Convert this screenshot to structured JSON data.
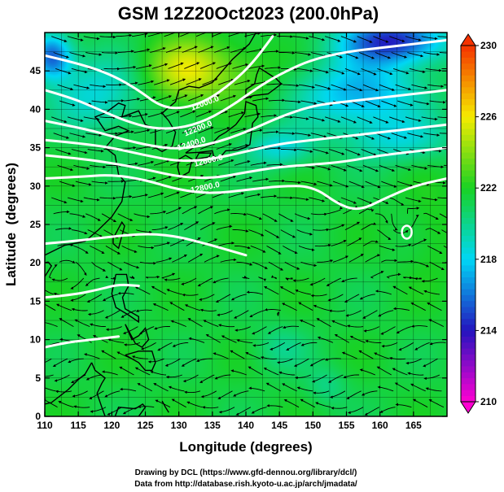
{
  "chart_data": {
    "type": "heatmap",
    "title": "GSM 12Z20Oct2023 (200.0hPa)",
    "xlabel": "Longitude (degrees)",
    "ylabel": "Latitude  (degrees)",
    "xlim": [
      110,
      170
    ],
    "ylim": [
      0,
      50
    ],
    "xticks": [
      110,
      115,
      120,
      125,
      130,
      135,
      140,
      145,
      150,
      155,
      160,
      165
    ],
    "yticks": [
      0,
      5,
      10,
      15,
      20,
      25,
      30,
      35,
      40,
      45
    ],
    "grid": true,
    "colorbar": {
      "placement": "right",
      "range": [
        210,
        230
      ],
      "ticks": [
        210,
        214,
        218,
        222,
        226,
        230
      ]
    },
    "contour_labels": [
      "12000.0",
      "12200.0",
      "12400.0",
      "12600.0",
      "12800.0"
    ],
    "contours": [
      {
        "points": [
          [
            110,
            47
          ],
          [
            115,
            46
          ],
          [
            120,
            44.5
          ],
          [
            124,
            42.5
          ],
          [
            127,
            40.5
          ],
          [
            130,
            40
          ],
          [
            134,
            41
          ],
          [
            138,
            43.5
          ],
          [
            141,
            46
          ],
          [
            144,
            49.5
          ]
        ]
      },
      {
        "points": [
          [
            110,
            42.5
          ],
          [
            114,
            41.5
          ],
          [
            118,
            40
          ],
          [
            122,
            38.5
          ],
          [
            126,
            37.5
          ],
          [
            130,
            37.5
          ],
          [
            134,
            38.5
          ],
          [
            138,
            40.5
          ],
          [
            142,
            43
          ],
          [
            146,
            45
          ],
          [
            150,
            46.5
          ],
          [
            155,
            47.5
          ],
          [
            160,
            48
          ],
          [
            165,
            48.5
          ],
          [
            170,
            49
          ]
        ]
      },
      {
        "points": [
          [
            110,
            38.5
          ],
          [
            114,
            37.8
          ],
          [
            118,
            37
          ],
          [
            122,
            36
          ],
          [
            126,
            35.2
          ],
          [
            130,
            34.8
          ],
          [
            135,
            35.5
          ],
          [
            140,
            37
          ],
          [
            145,
            39
          ],
          [
            150,
            40.5
          ],
          [
            155,
            41
          ],
          [
            160,
            41.5
          ],
          [
            165,
            42
          ],
          [
            170,
            42.5
          ]
        ]
      },
      {
        "points": [
          [
            110,
            36
          ],
          [
            115,
            35.6
          ],
          [
            120,
            35
          ],
          [
            125,
            34
          ],
          [
            130,
            33.2
          ],
          [
            135,
            33.5
          ],
          [
            140,
            34.5
          ],
          [
            145,
            35.5
          ],
          [
            150,
            36
          ],
          [
            155,
            36.5
          ],
          [
            160,
            37
          ],
          [
            165,
            37.5
          ],
          [
            170,
            38
          ]
        ]
      },
      {
        "points": [
          [
            110,
            34
          ],
          [
            115,
            33.6
          ],
          [
            120,
            33
          ],
          [
            125,
            32.2
          ],
          [
            130,
            31.2
          ],
          [
            135,
            31
          ],
          [
            140,
            31.8
          ],
          [
            145,
            32.5
          ],
          [
            150,
            32.8
          ],
          [
            155,
            33.2
          ],
          [
            160,
            34
          ],
          [
            165,
            34.5
          ],
          [
            170,
            35
          ]
        ]
      },
      {
        "points": [
          [
            110,
            31
          ],
          [
            115,
            31.2
          ],
          [
            120,
            31.5
          ],
          [
            125,
            30.8
          ],
          [
            130,
            29.5
          ],
          [
            135,
            29
          ],
          [
            140,
            29.5
          ],
          [
            145,
            30
          ],
          [
            150,
            30
          ],
          [
            154,
            27.5
          ],
          [
            157,
            26.8
          ],
          [
            161,
            28.5
          ],
          [
            165,
            30
          ],
          [
            170,
            31
          ]
        ]
      },
      {
        "points": [
          [
            110,
            22.5
          ],
          [
            114,
            22.8
          ],
          [
            118,
            23.2
          ],
          [
            122,
            23.6
          ],
          [
            126,
            23.8
          ],
          [
            130,
            23.4
          ],
          [
            134,
            22.5
          ],
          [
            138,
            21.5
          ],
          [
            140,
            21
          ]
        ]
      },
      {
        "points": [
          [
            110,
            15.5
          ],
          [
            114,
            15.8
          ],
          [
            118,
            16.5
          ],
          [
            121,
            17.2
          ],
          [
            124,
            17
          ]
        ]
      },
      {
        "points": [
          [
            110,
            9
          ],
          [
            113,
            9.6
          ],
          [
            117,
            10
          ],
          [
            121,
            10.4
          ]
        ]
      }
    ],
    "small_contour_center": [
      164,
      24
    ]
  }
}
